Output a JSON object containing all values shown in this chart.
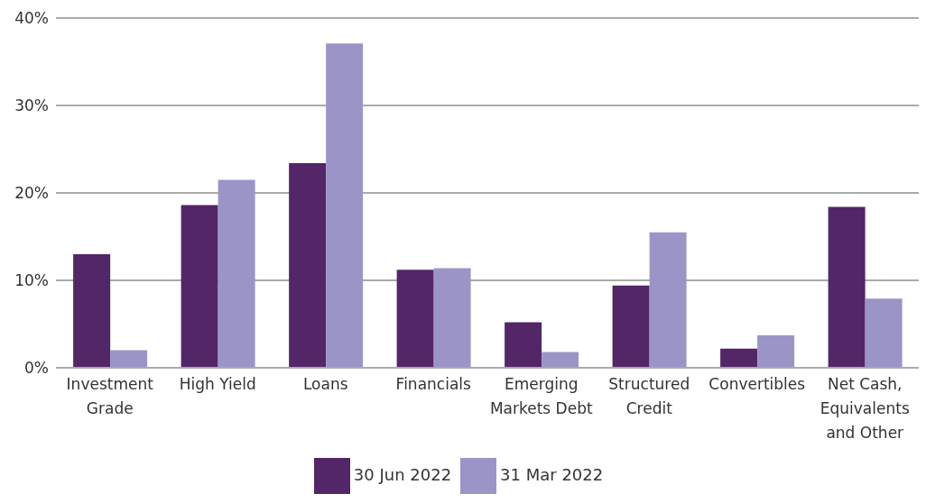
{
  "chart_data": {
    "type": "bar",
    "categories": [
      "Investment Grade",
      "High Yield",
      "Loans",
      "Financials",
      "Emerging Markets Debt",
      "Structured Credit",
      "Convertibles",
      "Net Cash, Equivalents and Other"
    ],
    "series": [
      {
        "name": "30 Jun 2022",
        "color": "#532667",
        "values": [
          13.0,
          18.6,
          23.4,
          11.2,
          5.2,
          9.4,
          2.2,
          18.4
        ]
      },
      {
        "name": "31 Mar 2022",
        "color": "#9b95c7",
        "values": [
          2.0,
          21.5,
          37.1,
          11.4,
          1.8,
          15.5,
          3.7,
          7.9
        ]
      }
    ],
    "ylim": [
      0,
      40
    ],
    "yticks": [
      {
        "value": 0,
        "label": "0%"
      },
      {
        "value": 10,
        "label": "10%"
      },
      {
        "value": 20,
        "label": "20%"
      },
      {
        "value": 30,
        "label": "30%"
      },
      {
        "value": 40,
        "label": "40%"
      }
    ],
    "grid": "y",
    "legend": "bottom"
  }
}
